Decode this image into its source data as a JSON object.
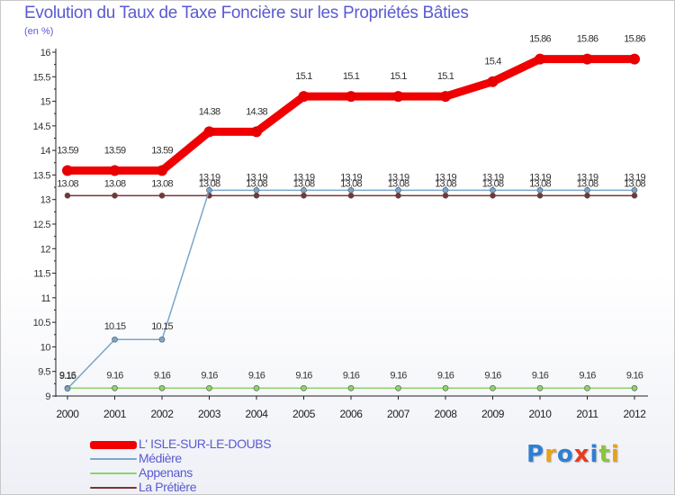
{
  "chart_data": {
    "type": "line",
    "title": "Evolution du Taux de Taxe Foncière sur les Propriétés Bâties",
    "subtitle": "(en %)",
    "x": [
      "2000",
      "2001",
      "2002",
      "2003",
      "2004",
      "2005",
      "2006",
      "2007",
      "2008",
      "2009",
      "2010",
      "2011",
      "2012"
    ],
    "ylim": [
      9,
      16
    ],
    "yticks": [
      "9",
      "9.5",
      "10",
      "10.5",
      "11",
      "11.5",
      "12",
      "12.5",
      "13",
      "13.5",
      "14",
      "14.5",
      "15",
      "15.5",
      "16"
    ],
    "series": [
      {
        "name": "La Prétière",
        "color": "#7a3434",
        "values": [
          13.08,
          13.08,
          13.08,
          13.08,
          13.08,
          13.08,
          13.08,
          13.08,
          13.08,
          13.08,
          13.08,
          13.08,
          13.08
        ],
        "labels": [
          "13.08",
          "13.08",
          "13.08",
          "13.08",
          "13.08",
          "13.08",
          "13.08",
          "13.08",
          "13.08",
          "13.08",
          "13.08",
          "13.08",
          "13.08"
        ]
      },
      {
        "name": "Appenans",
        "color": "#8ed46a",
        "values": [
          9.16,
          9.16,
          9.16,
          9.16,
          9.16,
          9.16,
          9.16,
          9.16,
          9.16,
          9.16,
          9.16,
          9.16,
          9.16
        ],
        "labels": [
          "9.16",
          "9.16",
          "9.16",
          "9.16",
          "9.16",
          "9.16",
          "9.16",
          "9.16",
          "9.16",
          "9.16",
          "9.16",
          "9.16",
          "9.16"
        ]
      },
      {
        "name": "Médière",
        "color": "#7aa6cc",
        "values": [
          9.15,
          10.15,
          10.15,
          13.19,
          13.19,
          13.19,
          13.19,
          13.19,
          13.19,
          13.19,
          13.19,
          13.19,
          13.19
        ],
        "labels": [
          "9.15",
          "10.15",
          "10.15",
          "13.19",
          "13.19",
          "13.19",
          "13.19",
          "13.19",
          "13.19",
          "13.19",
          "13.19",
          "13.19",
          "13.19"
        ]
      },
      {
        "name": "L' ISLE-SUR-LE-DOUBS",
        "color": "#f00000",
        "values": [
          13.59,
          13.59,
          13.59,
          14.38,
          14.38,
          15.1,
          15.1,
          15.1,
          15.1,
          15.4,
          15.86,
          15.86,
          15.86
        ],
        "labels": [
          "13.59",
          "13.59",
          "13.59",
          "14.38",
          "14.38",
          "15.1",
          "15.1",
          "15.1",
          "15.1",
          "15.4",
          "15.86",
          "15.86",
          "15.86"
        ]
      }
    ],
    "legend": [
      {
        "name": "L' ISLE-SUR-LE-DOUBS",
        "color": "#f00000"
      },
      {
        "name": "Médière",
        "color": "#7aa6cc"
      },
      {
        "name": "Appenans",
        "color": "#8ed46a"
      },
      {
        "name": "La Prétière",
        "color": "#7a3434"
      }
    ],
    "legend_position": "bottom-left",
    "grid": false
  },
  "logo": {
    "letters": [
      "P",
      "r",
      "o",
      "x",
      "i",
      "t",
      "i"
    ],
    "colors": [
      "#2f7fd0",
      "#e8a21a",
      "#2f7fd0",
      "#e83c1a",
      "#2f7fd0",
      "#8ac43a",
      "#e8a21a"
    ]
  }
}
